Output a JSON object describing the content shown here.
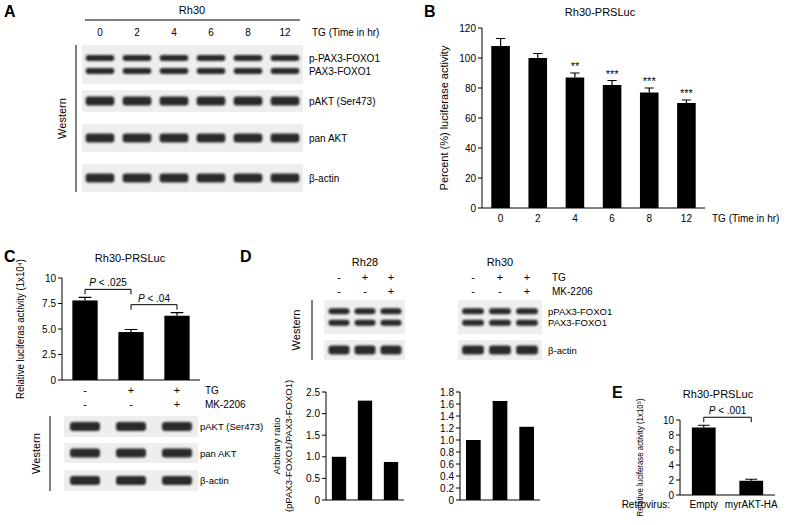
{
  "panel_labels": [
    "A",
    "B",
    "C",
    "D",
    "E"
  ],
  "westerns": [
    {
      "title": "Rh30",
      "lanes": [
        "0",
        "2",
        "4",
        "6",
        "8",
        "12"
      ],
      "condition": "TG (Time in hr)",
      "side_label": "Western",
      "rows": [
        {
          "labels": [
            "p-PAX3-FOXO1",
            "PAX3-FOXO1"
          ]
        },
        {
          "labels": [
            "pAKT (Ser473)"
          ]
        },
        {
          "labels": [
            "pan AKT"
          ]
        },
        {
          "labels": [
            "β-actin"
          ]
        }
      ]
    },
    {
      "lanes": [
        null,
        null,
        null
      ],
      "side_label": "Western",
      "rows": [
        {
          "labels": [
            "pAKT (Ser473)"
          ]
        },
        {
          "labels": [
            "pan AKT"
          ]
        },
        {
          "labels": [
            "β-actin"
          ]
        }
      ]
    },
    {
      "side_label": "Western",
      "condition_names": [
        "TG",
        "MK-2206"
      ],
      "groups": [
        {
          "title": "Rh28",
          "conditions": [
            [
              "-",
              "+",
              "+"
            ],
            [
              "-",
              "-",
              "+"
            ]
          ]
        },
        {
          "title": "Rh30",
          "conditions": [
            [
              "-",
              "+",
              "+"
            ],
            [
              "-",
              "-",
              "+"
            ]
          ]
        }
      ],
      "rows": [
        {
          "labels": [
            "pPAX3-FOXO1",
            "PAX3-FOXO1"
          ]
        },
        {
          "labels": [
            "β-actin"
          ]
        }
      ]
    }
  ],
  "chart_data": [
    {
      "type": "bar",
      "title": "Rh30-PRSLuc",
      "y_label": "Percent (%) luciferase activity",
      "x_label": "TG (Time in hr)",
      "categories": [
        "0",
        "2",
        "4",
        "6",
        "8",
        "12"
      ],
      "values": [
        108,
        100,
        87,
        82,
        77,
        70
      ],
      "errors": [
        5,
        3,
        3,
        3,
        3,
        2
      ],
      "significance": [
        null,
        null,
        "**",
        "***",
        "***",
        "***"
      ],
      "color": "#000000",
      "ylim": [
        0,
        120
      ],
      "yticks": [
        0,
        20,
        40,
        60,
        80,
        100,
        120
      ]
    },
    {
      "type": "bar",
      "title": "Rh30-PRSLuc",
      "y_label": "Relative luciferas activity (1x10⁴)",
      "categories": [
        null,
        null,
        null
      ],
      "values": [
        7.8,
        4.7,
        6.3
      ],
      "errors": [
        0.3,
        0.25,
        0.3
      ],
      "color": "#000000",
      "ylim": [
        0,
        10
      ],
      "yticks": [
        0,
        2.5,
        {
          "value": 5,
          "label": "5.0"
        },
        7.5,
        10
      ],
      "comparisons": [
        {
          "from": 0,
          "to": 1,
          "label": "P < .025"
        },
        {
          "from": 1,
          "to": 2,
          "label": "P < .04"
        }
      ],
      "conditions": [
        {
          "name": "TG",
          "values": [
            "-",
            "+",
            "+"
          ]
        },
        {
          "name": "MK-2206",
          "values": [
            "-",
            "-",
            "+"
          ]
        }
      ]
    },
    {
      "type": "bar",
      "y_label": [
        "Arbitrary ratio",
        "(pPAX3-FOXO1/PAX3-FOXO1)"
      ],
      "categories": [
        null,
        null,
        null
      ],
      "values": [
        1,
        2.3,
        0.88
      ],
      "color": "#000000",
      "ylim": [
        0,
        2.5
      ],
      "yticks": [
        0,
        0.5,
        {
          "value": 1,
          "label": "1.0"
        },
        1.5,
        {
          "value": 2,
          "label": "2.0"
        },
        2.5
      ]
    },
    {
      "type": "bar",
      "categories": [
        null,
        null,
        null
      ],
      "values": [
        1,
        1.65,
        1.22
      ],
      "color": "#000000",
      "ylim": [
        0,
        1.8
      ],
      "yticks": [
        0,
        0.2,
        0.4,
        0.6,
        0.8,
        {
          "value": 1,
          "label": "1.0"
        },
        1.2,
        1.4,
        1.6,
        1.8
      ]
    },
    {
      "type": "bar",
      "title": "Rh30-PRSLuc",
      "y_label": "Relative luciferase activity (1x10⁵)",
      "x_label": "Retrovirus:",
      "categories": [
        "Empty",
        "myrAKT-HA"
      ],
      "values": [
        9,
        1.9
      ],
      "errors": [
        0.3,
        0.2
      ],
      "color": "#000000",
      "ylim": [
        0,
        10
      ],
      "yticks": [
        0,
        2,
        4,
        6,
        8,
        10
      ],
      "comparisons": [
        {
          "from": 0,
          "to": 1,
          "label": "P < .001"
        }
      ]
    }
  ]
}
